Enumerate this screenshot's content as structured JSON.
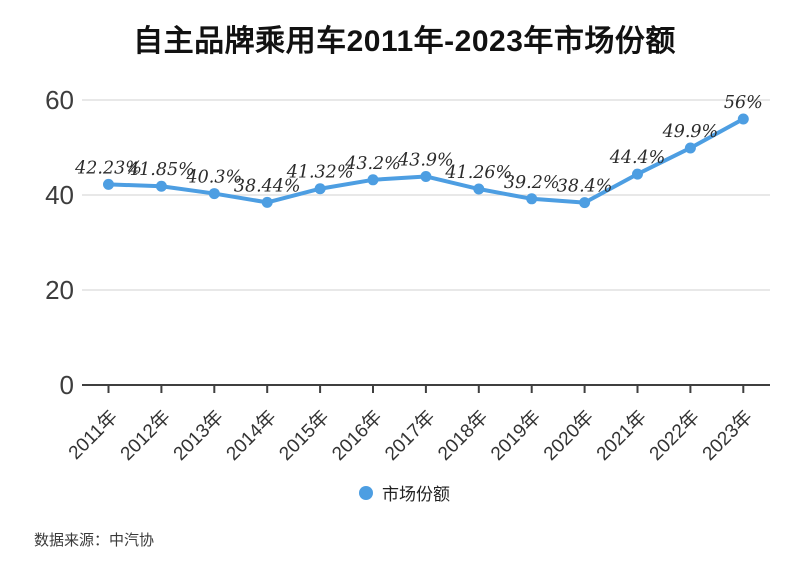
{
  "title": "自主品牌乘用车2011年-2023年市场份额",
  "source_text": "数据来源：中汽协",
  "legend": {
    "label": "市场份额",
    "marker_icon": "circle-icon",
    "color": "#4D9EE2"
  },
  "chart_data": {
    "type": "line",
    "title": "自主品牌乘用车2011年-2023年市场份额",
    "categories": [
      "2011年",
      "2012年",
      "2013年",
      "2014年",
      "2015年",
      "2016年",
      "2017年",
      "2018年",
      "2019年",
      "2020年",
      "2021年",
      "2022年",
      "2023年"
    ],
    "series": [
      {
        "name": "市场份额",
        "values": [
          42.23,
          41.85,
          40.3,
          38.44,
          41.32,
          43.2,
          43.9,
          41.26,
          39.2,
          38.4,
          44.4,
          49.9,
          56
        ]
      }
    ],
    "point_labels": [
      "42.23%",
      "41.85%",
      "40.3%",
      "38.44%",
      "41.32%",
      "43.2%",
      "43.9%",
      "41.26%",
      "39.2%",
      "38.4%",
      "44.4%",
      "49.9%",
      "56%"
    ],
    "xlabel": "",
    "ylabel": "",
    "yticks": [
      0,
      20,
      40,
      60
    ],
    "ylim": [
      0,
      60
    ],
    "grid": "horizontal-only",
    "legend_position": "bottom-center",
    "colors": {
      "line": "#4D9EE2",
      "marker": "#4D9EE2",
      "grid": "#DADADA",
      "axis": "#3F3F3F",
      "tick_label": "#3D3D3D",
      "point_label": "#2B2B2B",
      "title": "#111111"
    }
  }
}
